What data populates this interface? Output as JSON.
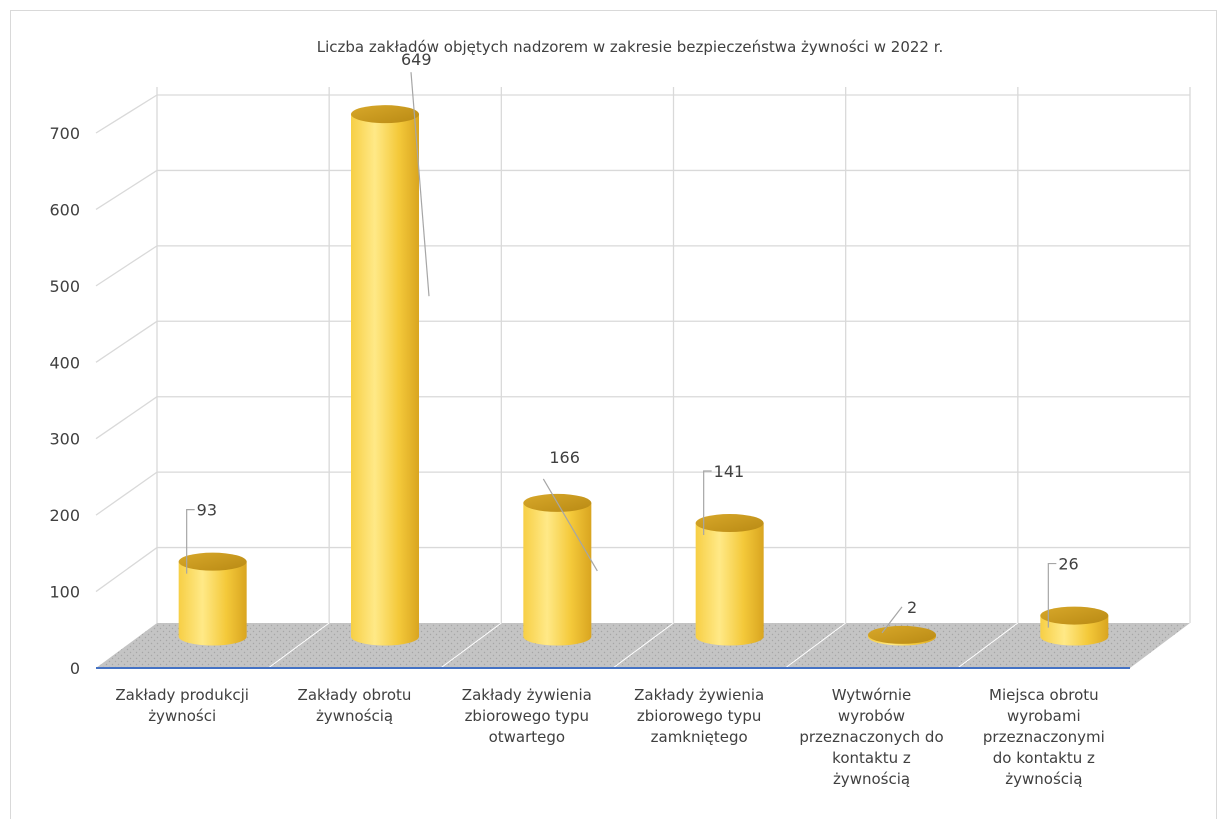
{
  "chart_data": {
    "type": "bar",
    "style": "3d-cylinder",
    "title": "Liczba zakładów objętych nadzorem w zakresie bezpieczeństwa żywności w 2022 r.",
    "categories": [
      "Zakłady produkcji żywności",
      "Zakłady obrotu żywnością",
      "Zakłady żywienia zbiorowego typu otwartego",
      "Zakłady żywienia zbiorowego typu zamkniętego",
      "Wytwórnie wyrobów przeznaczonych do kontaktu z żywnością",
      "Miejsca obrotu wyrobami przeznaczonymi do kontaktu z żywnością"
    ],
    "category_lines": [
      [
        "Zakłady produkcji",
        "żywności"
      ],
      [
        "Zakłady obrotu",
        "żywnością"
      ],
      [
        "Zakłady żywienia",
        "zbiorowego typu",
        "otwartego"
      ],
      [
        "Zakłady żywienia",
        "zbiorowego typu",
        "zamkniętego"
      ],
      [
        "Wytwórnie",
        "wyrobów",
        "przeznaczonych do",
        "kontaktu z",
        "żywnością"
      ],
      [
        "Miejsca obrotu",
        "wyrobami",
        "przeznaczonymi",
        "do kontaktu z",
        "żywnością"
      ]
    ],
    "values": [
      93,
      649,
      166,
      141,
      2,
      26
    ],
    "data_labels": [
      "93",
      "649",
      "166",
      "141",
      "2",
      "26"
    ],
    "y_ticks": [
      "0",
      "100",
      "200",
      "300",
      "400",
      "500",
      "600",
      "700"
    ],
    "ylim": [
      0,
      700
    ],
    "grid": true,
    "legend": "none",
    "colors": {
      "bar_light": "#ffe680",
      "bar_mid": "#f2c432",
      "bar_dark": "#b8860b",
      "floor": "#bfbfbf",
      "gridline": "#d9d9d9",
      "axis_line": "#4472c4",
      "text": "#404040"
    }
  }
}
